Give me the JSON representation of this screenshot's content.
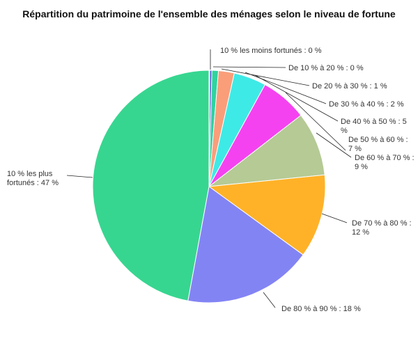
{
  "chart_data": {
    "type": "pie",
    "title": "Répartition du patrimoine de l'ensemble des ménages selon le niveau de fortune",
    "slices": [
      {
        "label": "10 % les moins fortunés : 0 %",
        "value": 0.1,
        "color": "#1e7b5f"
      },
      {
        "label": "De 10 % à 20 % : 0 %",
        "value": 0.3,
        "color": "#5b5ad8"
      },
      {
        "label": "De 20 % à 30 % : 1 %",
        "value": 0.9,
        "color": "#2fd3a0"
      },
      {
        "label": "De 30 % à 40 % : 2 %",
        "value": 2.2,
        "color": "#fa9e7a"
      },
      {
        "label": "De 40 % à 50 % : 5 %",
        "value": 4.5,
        "color": "#3eeae6"
      },
      {
        "label": "De 50 % à 60 % : 7 %",
        "value": 6.5,
        "color": "#f542f0"
      },
      {
        "label": "De 60 % à 70 % : 9 %",
        "value": 8.9,
        "color": "#b5ca95"
      },
      {
        "label": "De 70 % à 80 % : 12 %",
        "value": 11.6,
        "color": "#ffb228"
      },
      {
        "label": "De 80 % à 90 % : 18 %",
        "value": 17.9,
        "color": "#8384f4"
      },
      {
        "label": "10 % les plus fortunés : 47 %",
        "value": 47.1,
        "color": "#37d690"
      }
    ]
  }
}
